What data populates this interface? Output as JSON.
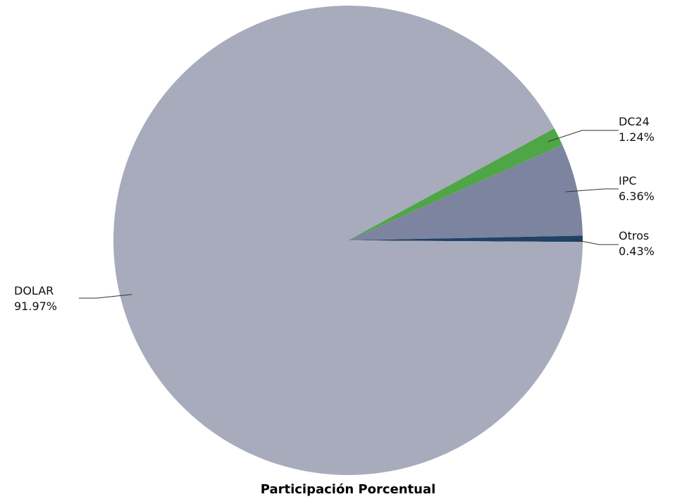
{
  "chart_data": {
    "type": "pie",
    "title": "Participación Porcentual",
    "slices": [
      {
        "label": "DC24",
        "value": 1.24,
        "value_label": "1.24%",
        "color": "#4ea646"
      },
      {
        "label": "IPC",
        "value": 6.36,
        "value_label": "6.36%",
        "color": "#7d849f"
      },
      {
        "label": "Otros",
        "value": 0.43,
        "value_label": "0.43%",
        "color": "#1f4266"
      },
      {
        "label": "DOLAR",
        "value": 91.97,
        "value_label": "91.97%",
        "color": "#a8abbb"
      }
    ],
    "legend": "none",
    "labels": "outside-with-leader-lines"
  }
}
